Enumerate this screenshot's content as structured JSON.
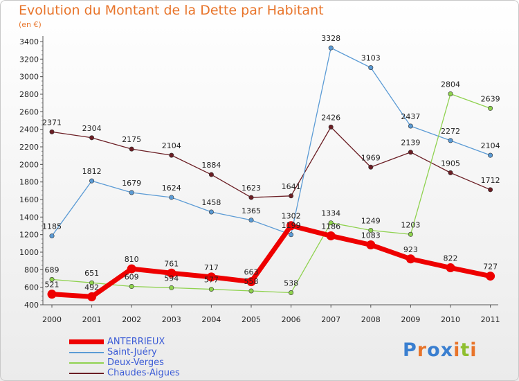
{
  "chart_data": {
    "type": "line",
    "title": "Evolution du Montant de la Dette par Habitant",
    "subtitle": "(en €)",
    "x": [
      "2000",
      "2001",
      "2002",
      "2003",
      "2004",
      "2005",
      "2006",
      "2007",
      "2008",
      "2009",
      "2010",
      "2011"
    ],
    "ylim": [
      400,
      3400
    ],
    "yticks": [
      400,
      600,
      800,
      1000,
      1200,
      1400,
      1600,
      1800,
      2000,
      2200,
      2400,
      2600,
      2800,
      3000,
      3200,
      3400
    ],
    "grid": false,
    "legend_position": "bottom-left",
    "series": [
      {
        "name": "Chaudes-Aigues",
        "color": "#6b1e24",
        "values": [
          2371,
          2304,
          2175,
          2104,
          1884,
          1623,
          1641,
          2426,
          1969,
          2139,
          1905,
          1712
        ]
      },
      {
        "name": "Saint-Juéry",
        "color": "#5b9bd5",
        "values": [
          1185,
          1812,
          1679,
          1624,
          1458,
          1365,
          1199,
          3328,
          3103,
          2437,
          2272,
          2104
        ]
      },
      {
        "name": "Deux-Verges",
        "color": "#8fd24f",
        "values": [
          689,
          651,
          609,
          594,
          577,
          558,
          538,
          1334,
          1249,
          1203,
          2804,
          2639
        ]
      },
      {
        "name": "ANTERRIEUX",
        "color": "#ee0000",
        "values": [
          521,
          492,
          810,
          761,
          717,
          663,
          1302,
          1186,
          1083,
          923,
          822,
          727
        ]
      }
    ],
    "legend_order": [
      "ANTERRIEUX",
      "Saint-Juéry",
      "Deux-Verges",
      "Chaudes-Aigues"
    ]
  },
  "logo": {
    "letters": [
      "P",
      "r",
      "o",
      "x",
      "i",
      "t",
      "i"
    ],
    "colors": [
      "#3a7fd0",
      "#e8742a",
      "#3a7fd0",
      "#3a7fd0",
      "#e8742a",
      "#8fbf2f",
      "#e8742a"
    ]
  }
}
